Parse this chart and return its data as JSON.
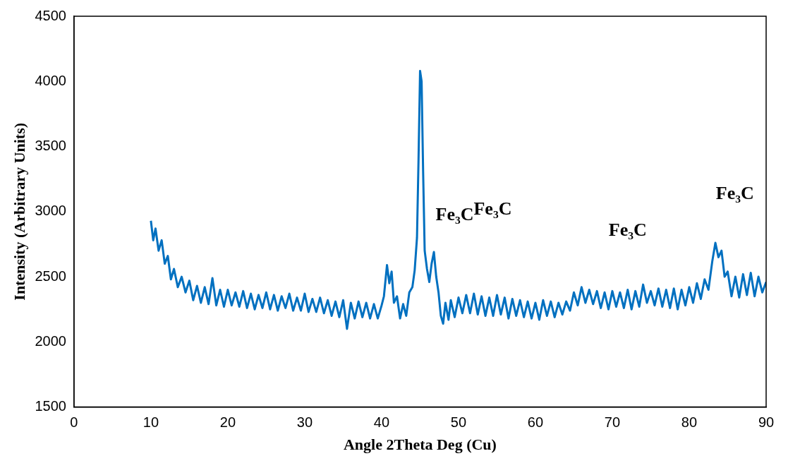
{
  "chart_data": {
    "type": "line",
    "xlabel": "Angle 2Theta Deg (Cu)",
    "ylabel": "Intensity (Arbitrary Units)",
    "xlim": [
      0,
      90
    ],
    "xticks": [
      0,
      10,
      20,
      30,
      40,
      50,
      60,
      70,
      80,
      90
    ],
    "ylim": [
      1500,
      4500
    ],
    "yticks": [
      1500,
      2000,
      2500,
      3000,
      3500,
      4000,
      4500
    ],
    "x": [
      10,
      10.3,
      10.6,
      11,
      11.4,
      11.8,
      12.2,
      12.6,
      13,
      13.5,
      14,
      14.5,
      15,
      15.5,
      16,
      16.5,
      17,
      17.5,
      18,
      18.5,
      19,
      19.5,
      20,
      20.5,
      21,
      21.5,
      22,
      22.5,
      23,
      23.5,
      24,
      24.5,
      25,
      25.5,
      26,
      26.5,
      27,
      27.5,
      28,
      28.5,
      29,
      29.5,
      30,
      30.5,
      31,
      31.5,
      32,
      32.5,
      33,
      33.5,
      34,
      34.5,
      35,
      35.5,
      36,
      36.5,
      37,
      37.5,
      38,
      38.5,
      39,
      39.5,
      40,
      40.3,
      40.7,
      41,
      41.3,
      41.6,
      42,
      42.4,
      42.8,
      43.2,
      43.6,
      44,
      44.3,
      44.6,
      44.8,
      45,
      45.2,
      45.4,
      45.6,
      45.9,
      46.2,
      46.5,
      46.8,
      47.1,
      47.4,
      47.7,
      48,
      48.3,
      48.7,
      49,
      49.5,
      50,
      50.5,
      51,
      51.5,
      52,
      52.5,
      53,
      53.5,
      54,
      54.5,
      55,
      55.5,
      56,
      56.5,
      57,
      57.5,
      58,
      58.5,
      59,
      59.5,
      60,
      60.5,
      61,
      61.5,
      62,
      62.5,
      63,
      63.5,
      64,
      64.5,
      65,
      65.5,
      66,
      66.5,
      67,
      67.5,
      68,
      68.5,
      69,
      69.5,
      70,
      70.5,
      71,
      71.5,
      72,
      72.5,
      73,
      73.5,
      74,
      74.5,
      75,
      75.5,
      76,
      76.5,
      77,
      77.5,
      78,
      78.5,
      79,
      79.5,
      80,
      80.5,
      81,
      81.5,
      82,
      82.5,
      83,
      83.4,
      83.8,
      84.2,
      84.6,
      85,
      85.5,
      86,
      86.5,
      87,
      87.5,
      88,
      88.5,
      89,
      89.5,
      90
    ],
    "series": [
      {
        "color": "#0070c0",
        "values": [
          2930,
          2780,
          2870,
          2700,
          2780,
          2600,
          2660,
          2480,
          2560,
          2420,
          2500,
          2380,
          2470,
          2320,
          2430,
          2300,
          2420,
          2290,
          2490,
          2280,
          2400,
          2270,
          2400,
          2280,
          2380,
          2270,
          2390,
          2260,
          2370,
          2250,
          2360,
          2260,
          2380,
          2250,
          2360,
          2240,
          2350,
          2260,
          2370,
          2240,
          2340,
          2240,
          2370,
          2230,
          2330,
          2230,
          2340,
          2220,
          2320,
          2200,
          2310,
          2190,
          2320,
          2100,
          2300,
          2180,
          2310,
          2190,
          2300,
          2180,
          2290,
          2180,
          2280,
          2350,
          2590,
          2450,
          2540,
          2300,
          2350,
          2180,
          2290,
          2200,
          2380,
          2420,
          2550,
          2800,
          3400,
          4080,
          4000,
          3300,
          2700,
          2560,
          2460,
          2600,
          2690,
          2500,
          2380,
          2200,
          2140,
          2300,
          2170,
          2320,
          2190,
          2340,
          2220,
          2360,
          2220,
          2370,
          2210,
          2350,
          2200,
          2340,
          2200,
          2360,
          2210,
          2340,
          2180,
          2330,
          2200,
          2320,
          2190,
          2310,
          2180,
          2300,
          2170,
          2320,
          2200,
          2310,
          2190,
          2300,
          2210,
          2310,
          2240,
          2380,
          2280,
          2420,
          2300,
          2400,
          2290,
          2390,
          2260,
          2380,
          2250,
          2390,
          2270,
          2380,
          2260,
          2400,
          2250,
          2390,
          2270,
          2440,
          2300,
          2390,
          2280,
          2410,
          2270,
          2400,
          2260,
          2410,
          2250,
          2400,
          2280,
          2420,
          2300,
          2450,
          2330,
          2480,
          2400,
          2620,
          2760,
          2650,
          2700,
          2500,
          2540,
          2350,
          2500,
          2340,
          2520,
          2360,
          2530,
          2350,
          2500,
          2380,
          2460
        ]
      }
    ],
    "annotations": [
      "Fe₃C",
      "Fe₃C",
      "Fe₃C",
      "Fe₃C"
    ]
  }
}
